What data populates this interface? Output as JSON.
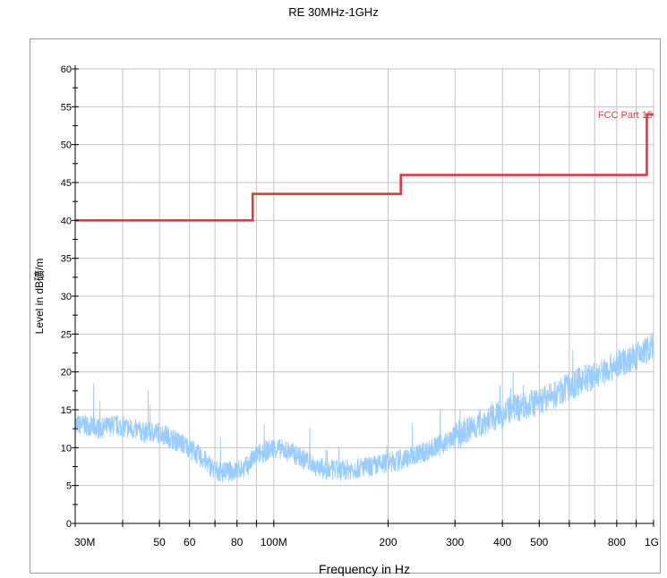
{
  "chart_data": {
    "type": "line",
    "title": "RE 30MHz-1GHz",
    "xlabel": "Frequency in Hz",
    "ylabel": "Level in dB礦/m",
    "xscale": "log",
    "xlim": [
      30000000,
      1000000000
    ],
    "ylim": [
      0,
      60
    ],
    "grid": true,
    "x_tick_labels": [
      {
        "value": 30000000,
        "label": "30M"
      },
      {
        "value": 50000000,
        "label": "50"
      },
      {
        "value": 60000000,
        "label": "60"
      },
      {
        "value": 80000000,
        "label": "80"
      },
      {
        "value": 100000000,
        "label": "100M"
      },
      {
        "value": 200000000,
        "label": "200"
      },
      {
        "value": 300000000,
        "label": "300"
      },
      {
        "value": 400000000,
        "label": "400"
      },
      {
        "value": 500000000,
        "label": "500"
      },
      {
        "value": 800000000,
        "label": "800"
      },
      {
        "value": 1000000000,
        "label": "1G"
      }
    ],
    "y_tick_labels": [
      {
        "value": 0,
        "label": "0"
      },
      {
        "value": 5,
        "label": "5"
      },
      {
        "value": 10,
        "label": "10"
      },
      {
        "value": 15,
        "label": "15"
      },
      {
        "value": 20,
        "label": "20"
      },
      {
        "value": 25,
        "label": "25"
      },
      {
        "value": 30,
        "label": "30"
      },
      {
        "value": 35,
        "label": "35"
      },
      {
        "value": 40,
        "label": "40"
      },
      {
        "value": 45,
        "label": "45"
      },
      {
        "value": 50,
        "label": "50"
      },
      {
        "value": 55,
        "label": "55"
      },
      {
        "value": 60,
        "label": "60"
      }
    ],
    "series": [
      {
        "name": "FCC Part 15",
        "role": "limit",
        "color": "#e8363c",
        "step": true,
        "x": [
          30000000,
          88000000,
          88000000,
          216000000,
          216000000,
          960000000,
          960000000,
          1000000000
        ],
        "y": [
          40,
          40,
          43.5,
          43.5,
          46,
          46,
          54,
          54
        ]
      },
      {
        "role": "measurement",
        "color": "#99ccff",
        "x": [
          30000000,
          32000000,
          35000000,
          38000000,
          42000000,
          46000000,
          50000000,
          55000000,
          60000000,
          65000000,
          70000000,
          75000000,
          80000000,
          85000000,
          90000000,
          95000000,
          100000000,
          110000000,
          120000000,
          130000000,
          140000000,
          150000000,
          160000000,
          180000000,
          200000000,
          220000000,
          250000000,
          280000000,
          300000000,
          330000000,
          360000000,
          400000000,
          450000000,
          500000000,
          550000000,
          600000000,
          650000000,
          700000000,
          800000000,
          900000000,
          1000000000
        ],
        "y": [
          13,
          13,
          12.5,
          13,
          12.5,
          12,
          12,
          11,
          10,
          8.5,
          7,
          6.8,
          7,
          7.5,
          9,
          9.5,
          10,
          9.5,
          8.5,
          7.5,
          7,
          7,
          7.2,
          7.5,
          8,
          8.5,
          9.5,
          10.5,
          11.5,
          12.5,
          13.5,
          14.5,
          15.5,
          16,
          17,
          18,
          19,
          19.5,
          21,
          22,
          23.5
        ]
      }
    ]
  }
}
